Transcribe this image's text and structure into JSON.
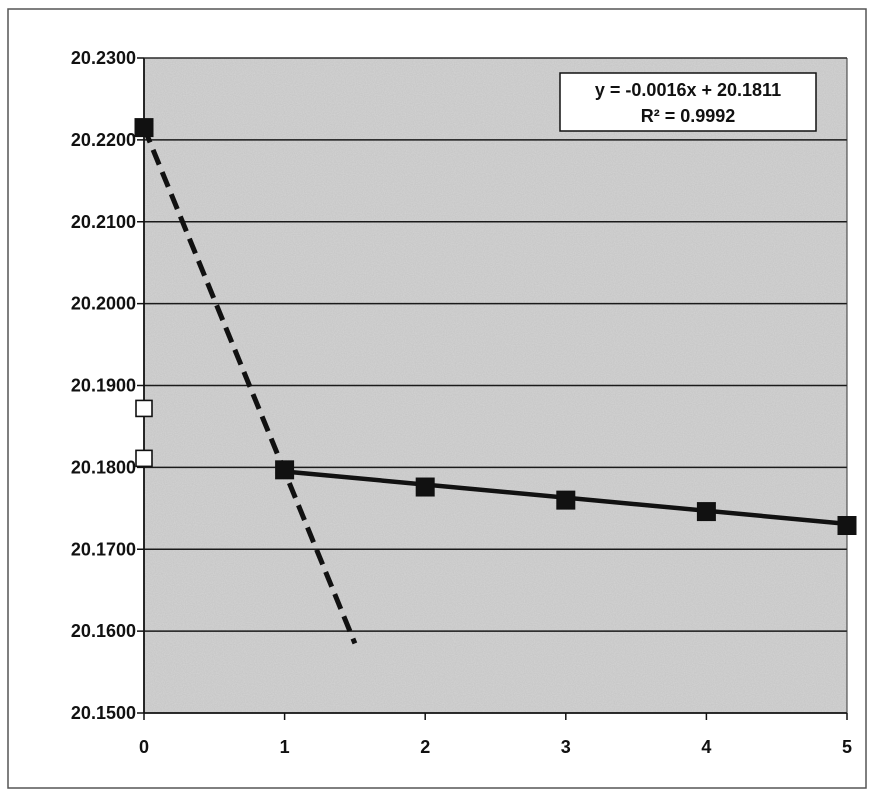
{
  "chart_data": {
    "type": "scatter",
    "title": "",
    "xlabel": "",
    "ylabel": "",
    "xlim": [
      0,
      5
    ],
    "ylim": [
      20.15,
      20.23
    ],
    "x_ticks": [
      0,
      1,
      2,
      3,
      4,
      5
    ],
    "x_tick_labels": [
      "0",
      "1",
      "2",
      "3",
      "4",
      "5"
    ],
    "y_ticks": [
      20.15,
      20.16,
      20.17,
      20.18,
      20.19,
      20.2,
      20.21,
      20.22,
      20.23
    ],
    "y_tick_labels": [
      "20.1500",
      "20.1600",
      "20.1700",
      "20.1800",
      "20.1900",
      "20.2000",
      "20.2100",
      "20.2200",
      "20.2300"
    ],
    "grid": "horizontal",
    "plot_background": "#c8c8c8",
    "series": [
      {
        "marker": "filled-square",
        "color": "#111111",
        "points": [
          [
            0,
            20.2215
          ],
          [
            1,
            20.1797
          ],
          [
            2,
            20.1776
          ],
          [
            3,
            20.176
          ],
          [
            4,
            20.1746
          ],
          [
            5,
            20.1729
          ]
        ]
      },
      {
        "marker": "open-square",
        "color": "#111111",
        "points": [
          [
            0,
            20.1872
          ],
          [
            0,
            20.1811
          ]
        ]
      }
    ],
    "trendlines": [
      {
        "style": "solid",
        "color": "#111111",
        "from": [
          1,
          20.1795
        ],
        "to": [
          5,
          20.1731
        ]
      },
      {
        "style": "dashed",
        "color": "#111111",
        "from": [
          0,
          20.2215
        ],
        "to": [
          1.5,
          20.1585
        ]
      }
    ],
    "annotations": {
      "equation": "y = -0.0016x + 20.1811",
      "r_squared": "R² = 0.9992",
      "placement": "top-right"
    }
  }
}
